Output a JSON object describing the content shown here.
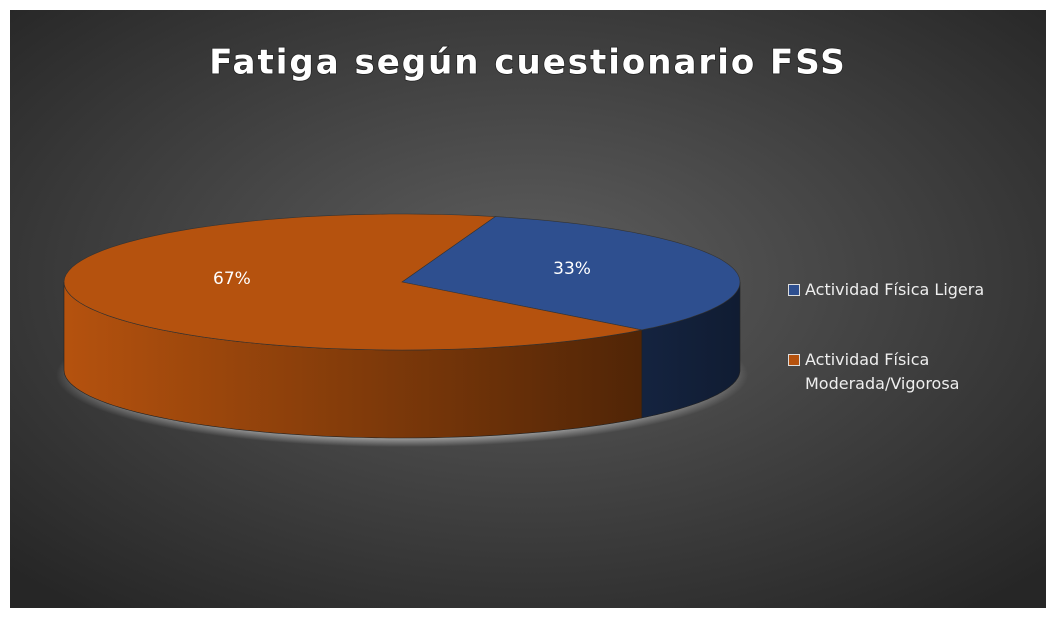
{
  "chart_data": {
    "type": "pie",
    "title": "Fatiga según cuestionario FSS",
    "categories": [
      "Actividad Física Ligera",
      "Actividad Física Moderada/Vigorosa"
    ],
    "values": [
      33,
      67
    ],
    "value_labels": [
      "33%",
      "67%"
    ],
    "colors": [
      "#2e4f8f",
      "#b5520e"
    ],
    "legend": "right"
  }
}
